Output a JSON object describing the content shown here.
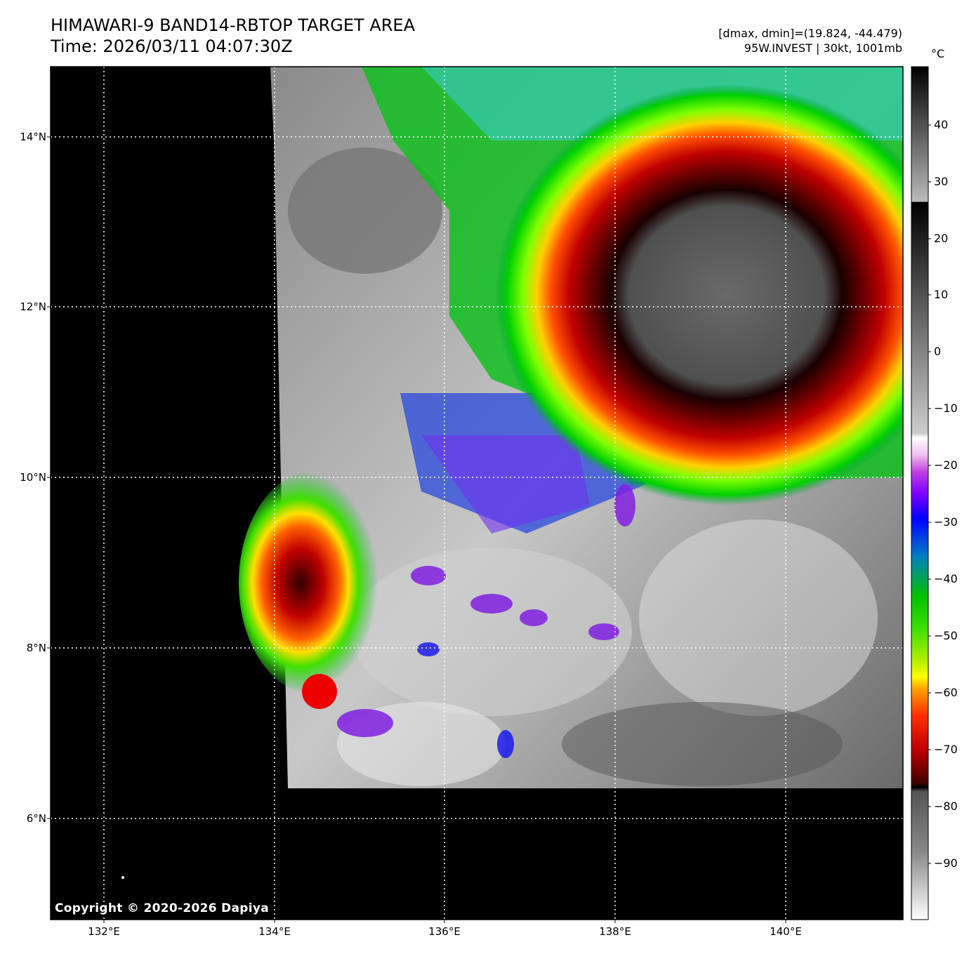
{
  "header": {
    "title_line1": "HIMAWARI-9 BAND14-RBTOP TARGET AREA",
    "title_line2": "Time: 2026/03/11 04:07:30Z",
    "dmax_dmin": "[dmax, dmin]=(19.824, -44.479)",
    "storm_info": "95W.INVEST | 30kt, 1001mb"
  },
  "map": {
    "lat_ticks": [
      "14°N",
      "12°N",
      "10°N",
      "8°N",
      "6°N"
    ],
    "lon_ticks": [
      "132°E",
      "134°E",
      "136°E",
      "138°E",
      "140°E"
    ],
    "copyright": "Copyright © 2020-2026 Dapiya",
    "background_color": "#000000"
  },
  "colorbar": {
    "unit": "°C",
    "labels": [
      "40",
      "30",
      "20",
      "10",
      "0",
      "−10",
      "−20",
      "−30",
      "−40",
      "−50",
      "−60",
      "−70",
      "−80",
      "−90"
    ]
  },
  "colors": {
    "deep_convection": "#cc0000",
    "cold_ring": "#330000",
    "green": "#22cc22",
    "blue": "#1010ee",
    "purple": "#9020e0",
    "yellow": "#e8e800"
  }
}
